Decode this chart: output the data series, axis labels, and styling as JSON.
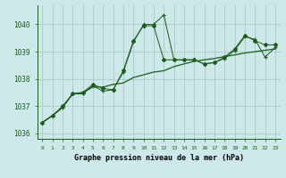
{
  "title": "Graphe pression niveau de la mer (hPa)",
  "bg_color": "#cce8e8",
  "grid_color": "#b0cccc",
  "line_color": "#1a5c1a",
  "xlim": [
    -0.5,
    23.5
  ],
  "ylim": [
    1035.8,
    1040.7
  ],
  "yticks": [
    1036,
    1037,
    1038,
    1039,
    1040
  ],
  "xticks": [
    0,
    1,
    2,
    3,
    4,
    5,
    6,
    7,
    8,
    9,
    10,
    11,
    12,
    13,
    14,
    15,
    16,
    17,
    18,
    19,
    20,
    21,
    22,
    23
  ],
  "series1_x": [
    0,
    1,
    2,
    3,
    4,
    5,
    6,
    7,
    8,
    9,
    10,
    11,
    12,
    13,
    14,
    15,
    16,
    17,
    18,
    19,
    20,
    21,
    22,
    23
  ],
  "series1_y": [
    1036.4,
    1036.65,
    1036.95,
    1037.45,
    1037.45,
    1037.75,
    1037.55,
    1037.6,
    1038.25,
    1039.35,
    1040.0,
    1040.0,
    1040.35,
    1038.7,
    1038.7,
    1038.7,
    1038.55,
    1038.6,
    1038.75,
    1039.05,
    1039.55,
    1039.45,
    1038.8,
    1039.15
  ],
  "series2_x": [
    0,
    1,
    2,
    3,
    4,
    5,
    6,
    7,
    8,
    9,
    10,
    11,
    12,
    13,
    14,
    15,
    16,
    17,
    18,
    19,
    20,
    21,
    22,
    23
  ],
  "series2_y": [
    1036.4,
    1036.65,
    1036.95,
    1037.45,
    1037.5,
    1037.7,
    1037.7,
    1037.8,
    1037.85,
    1038.05,
    1038.15,
    1038.25,
    1038.3,
    1038.45,
    1038.55,
    1038.65,
    1038.7,
    1038.75,
    1038.82,
    1038.88,
    1038.95,
    1039.0,
    1039.05,
    1039.1
  ],
  "series3_x": [
    0,
    1,
    2,
    3,
    4,
    5,
    6,
    7,
    8,
    9,
    10,
    11,
    12,
    13,
    14,
    15,
    16,
    17,
    18,
    19,
    20,
    21,
    22,
    23
  ],
  "series3_y": [
    1036.4,
    1036.65,
    1037.0,
    1037.45,
    1037.5,
    1037.8,
    1037.65,
    1037.6,
    1038.3,
    1039.4,
    1039.95,
    1039.95,
    1038.7,
    1038.7,
    1038.7,
    1038.7,
    1038.55,
    1038.6,
    1038.8,
    1039.1,
    1039.6,
    1039.4,
    1039.25,
    1039.25
  ]
}
